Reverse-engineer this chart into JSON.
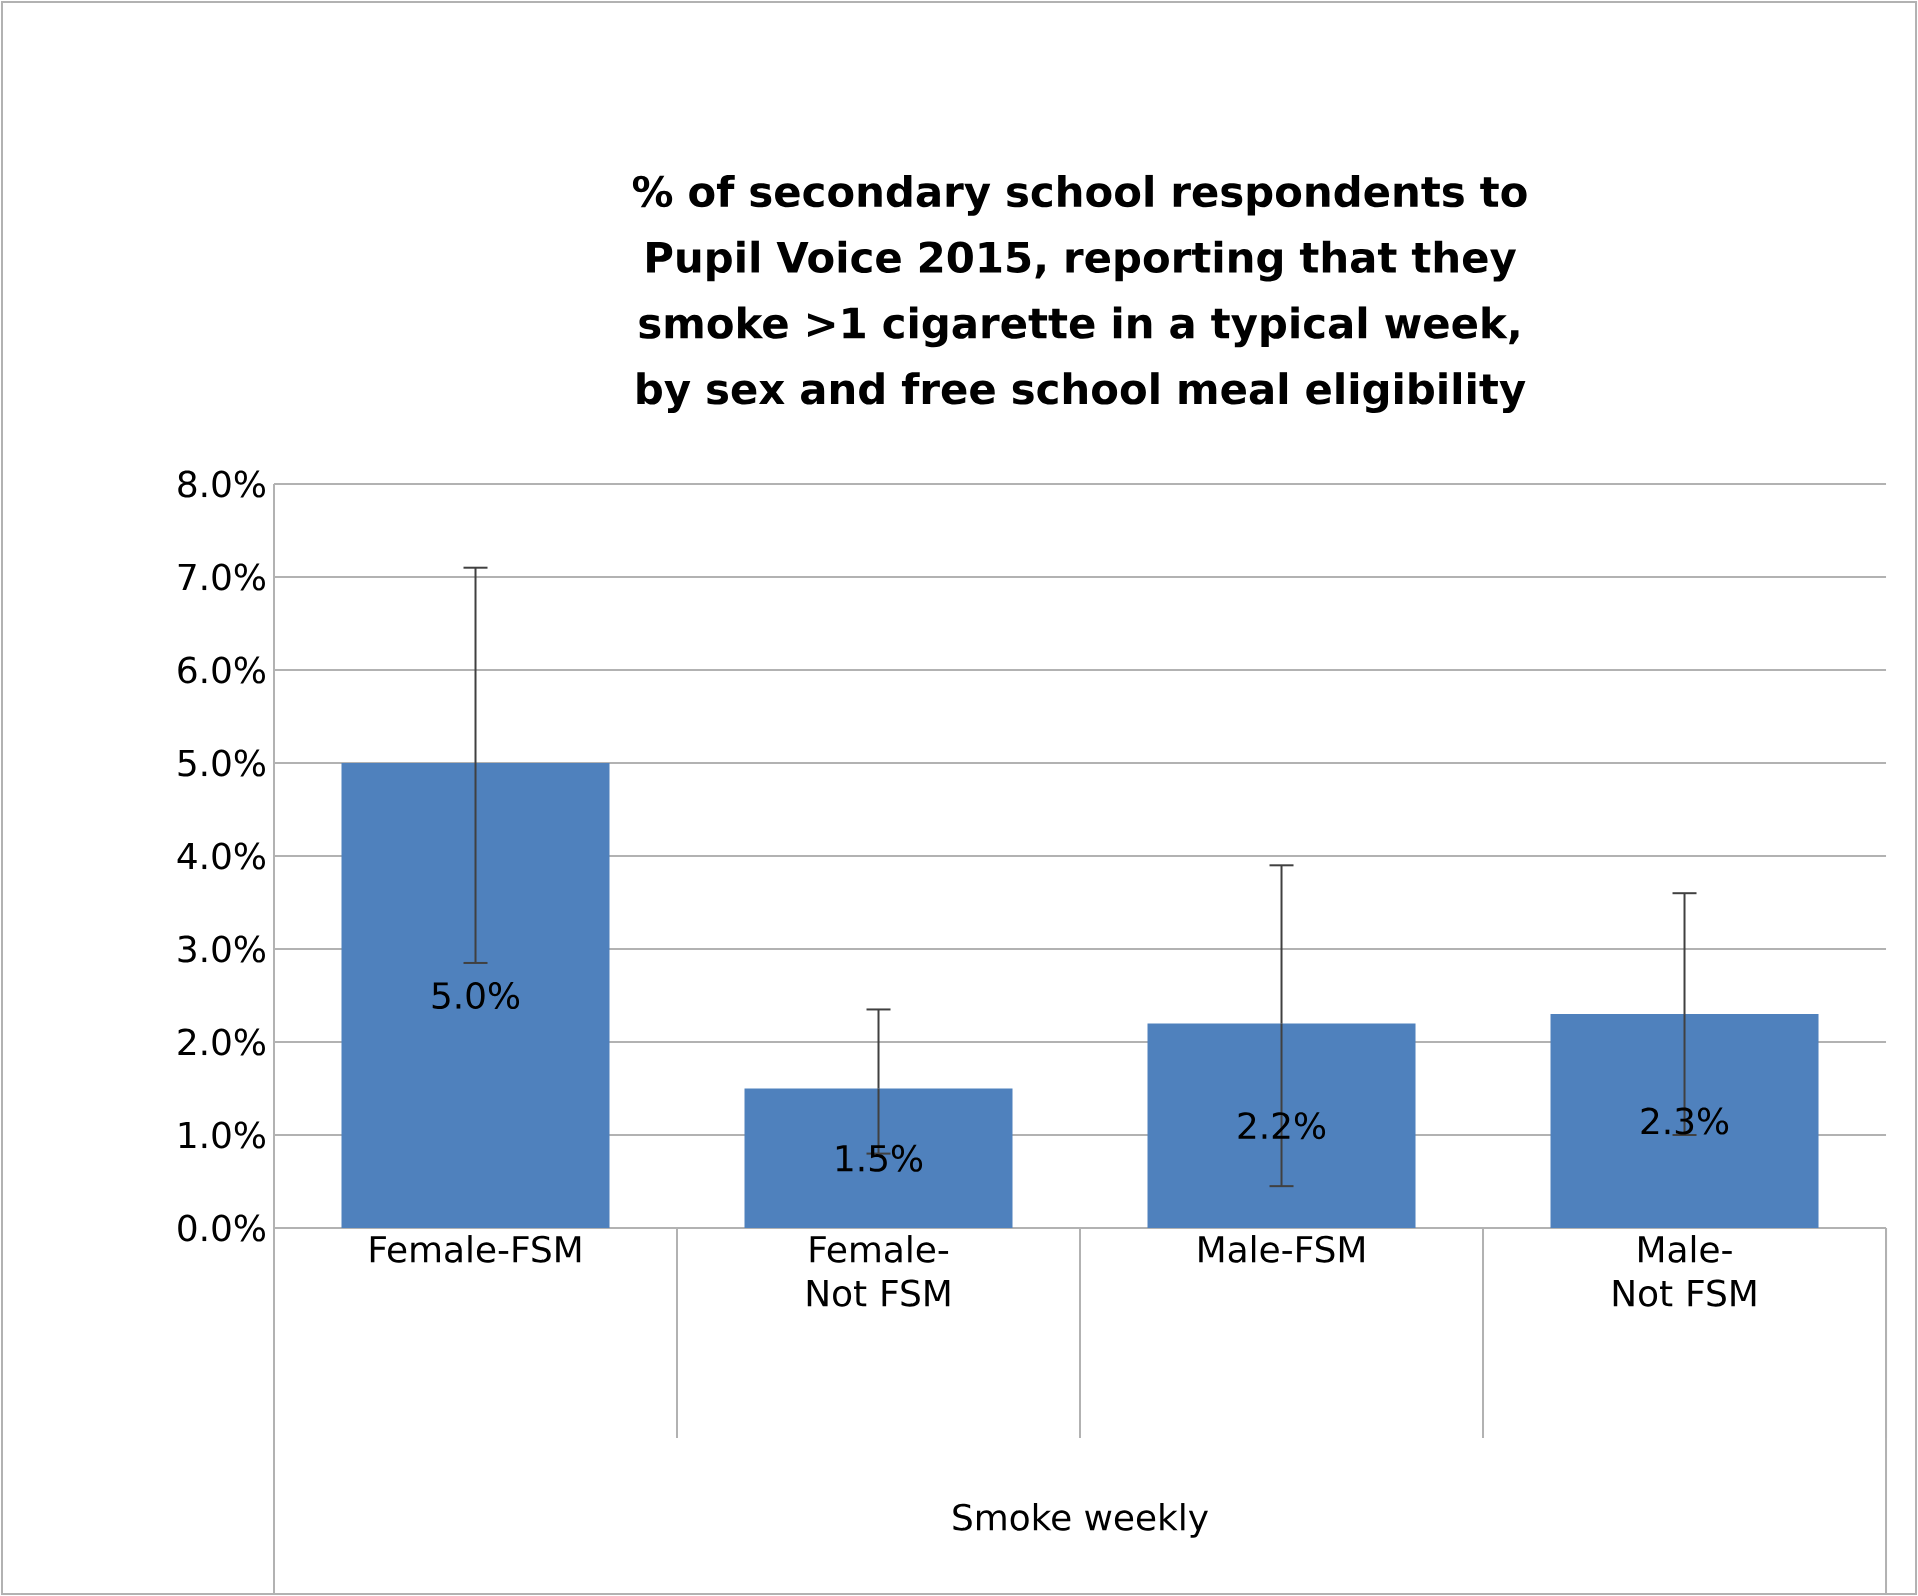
{
  "chart_data": {
    "type": "bar",
    "title": "% of secondary school respondents to Pupil Voice 2015, reporting that they smoke >1 cigarette in a typical week, by sex and free school meal eligibility",
    "annotations": [
      "Smoke weekly"
    ],
    "categories": [
      "Female-FSM",
      "Female-Not FSM",
      "Male-FSM",
      "Male-Not FSM"
    ],
    "values": [
      5.0,
      1.5,
      2.2,
      2.3
    ],
    "value_labels": [
      "5.0%",
      "1.5%",
      "2.2%",
      "2.3%"
    ],
    "errors": [
      [
        2.85,
        7.1
      ],
      [
        0.8,
        2.35
      ],
      [
        0.45,
        3.9
      ],
      [
        1.0,
        3.6
      ]
    ],
    "color": "#4f81bd",
    "ylim": [
      0,
      8
    ],
    "yticks": [
      {
        "value": 0,
        "label": "0.0%"
      },
      {
        "value": 1,
        "label": "1.0%"
      },
      {
        "value": 2,
        "label": "2.0%"
      },
      {
        "value": 3,
        "label": "3.0%"
      },
      {
        "value": 4,
        "label": "4.0%"
      },
      {
        "value": 5,
        "label": "5.0%"
      },
      {
        "value": 6,
        "label": "6.0%"
      },
      {
        "value": 7,
        "label": "7.0%"
      },
      {
        "value": 8,
        "label": "8.0%"
      }
    ],
    "grid": "y"
  }
}
